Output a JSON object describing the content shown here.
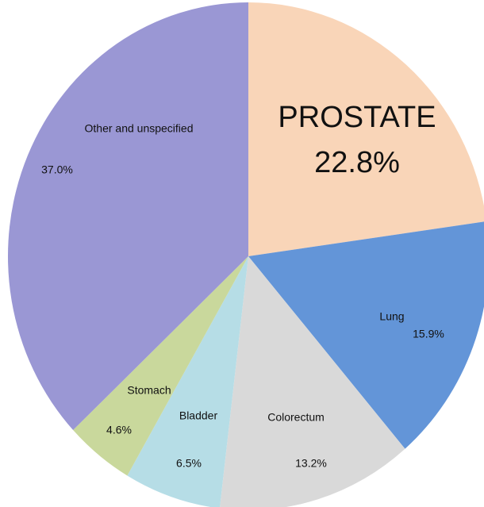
{
  "chart_data": {
    "type": "pie",
    "categories": [
      "PROSTATE",
      "Lung",
      "Colorectum",
      "Bladder",
      "Stomach",
      "Other and unspecified"
    ],
    "values": [
      22.8,
      15.9,
      13.2,
      6.5,
      4.6,
      37.0
    ],
    "value_labels": [
      "22.8%",
      "15.9%",
      "13.2%",
      "6.5%",
      "4.6%",
      "37.0%"
    ],
    "colors": [
      "#f9d5b8",
      "#6395d8",
      "#d9d9d9",
      "#b6dde6",
      "#c9d89c",
      "#9a97d4"
    ]
  }
}
